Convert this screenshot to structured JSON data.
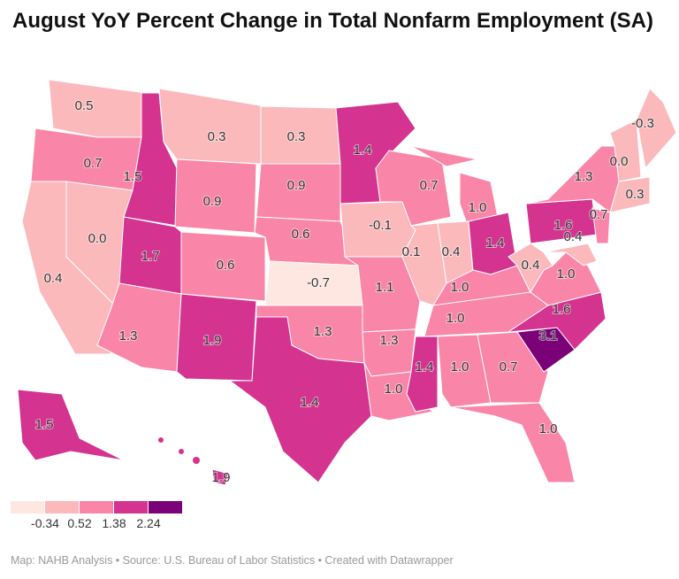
{
  "title": "August YoY Percent Change in Total Nonfarm Employment (SA)",
  "legend": {
    "colors": [
      "#fde7e0",
      "#fbb9bb",
      "#f986a8",
      "#d4338f",
      "#7a0177"
    ],
    "thresholds": [
      "-0.34",
      "0.52",
      "1.38",
      "2.24"
    ]
  },
  "states": {
    "WA": {
      "name": "Washington",
      "value": "0.5"
    },
    "OR": {
      "name": "Oregon",
      "value": "0.7"
    },
    "CA": {
      "name": "California",
      "value": "0.4"
    },
    "NV": {
      "name": "Nevada",
      "value": "0.0"
    },
    "ID": {
      "name": "Idaho",
      "value": "1.5"
    },
    "MT": {
      "name": "Montana",
      "value": "0.3"
    },
    "WY": {
      "name": "Wyoming",
      "value": "0.9"
    },
    "UT": {
      "name": "Utah",
      "value": "1.7"
    },
    "CO": {
      "name": "Colorado",
      "value": "0.6"
    },
    "AZ": {
      "name": "Arizona",
      "value": "1.3"
    },
    "NM": {
      "name": "New Mexico",
      "value": "1.9"
    },
    "ND": {
      "name": "North Dakota",
      "value": "0.3"
    },
    "SD": {
      "name": "South Dakota",
      "value": "0.9"
    },
    "NE": {
      "name": "Nebraska",
      "value": "0.6"
    },
    "KS": {
      "name": "Kansas",
      "value": "-0.7"
    },
    "OK": {
      "name": "Oklahoma",
      "value": "1.3"
    },
    "TX": {
      "name": "Texas",
      "value": "1.4"
    },
    "MN": {
      "name": "Minnesota",
      "value": "1.4"
    },
    "IA": {
      "name": "Iowa",
      "value": "-0.1"
    },
    "MO": {
      "name": "Missouri",
      "value": "1.1"
    },
    "AR": {
      "name": "Arkansas",
      "value": "1.3"
    },
    "LA": {
      "name": "Louisiana",
      "value": "1.0"
    },
    "WI": {
      "name": "Wisconsin",
      "value": "0.7"
    },
    "IL": {
      "name": "Illinois",
      "value": "0.1"
    },
    "MI": {
      "name": "Michigan",
      "value": "1.0"
    },
    "IN": {
      "name": "Indiana",
      "value": "0.4"
    },
    "OH": {
      "name": "Ohio",
      "value": "1.4"
    },
    "KY": {
      "name": "Kentucky",
      "value": "1.0"
    },
    "TN": {
      "name": "Tennessee",
      "value": "1.0"
    },
    "MS": {
      "name": "Mississippi",
      "value": "1.4"
    },
    "AL": {
      "name": "Alabama",
      "value": "1.0"
    },
    "GA": {
      "name": "Georgia",
      "value": "0.7"
    },
    "FL": {
      "name": "Florida",
      "value": "1.0"
    },
    "SC": {
      "name": "South Carolina",
      "value": "3.1"
    },
    "NC": {
      "name": "North Carolina",
      "value": "1.6"
    },
    "VA": {
      "name": "Virginia",
      "value": "1.0"
    },
    "WV": {
      "name": "West Virginia",
      "value": "0.4"
    },
    "PA": {
      "name": "Pennsylvania",
      "value": "1.6"
    },
    "NY": {
      "name": "New York",
      "value": "1.3"
    },
    "NJ": {
      "name": "New Jersey",
      "value": "0.7"
    },
    "MD": {
      "name": "Maryland",
      "value": "0.4"
    },
    "NH": {
      "name": "New Hampshire",
      "value": "0.0"
    },
    "ME": {
      "name": "Maine",
      "value": "-0.3"
    },
    "MA": {
      "name": "Massachusetts",
      "value": "0.3"
    },
    "AK": {
      "name": "Alaska",
      "value": "1.5"
    },
    "HI": {
      "name": "Hawaii",
      "value": "1.9"
    }
  },
  "footer": "Map: NAHB Analysis • Source: U.S. Bureau of Labor Statistics • Created with Datawrapper"
}
